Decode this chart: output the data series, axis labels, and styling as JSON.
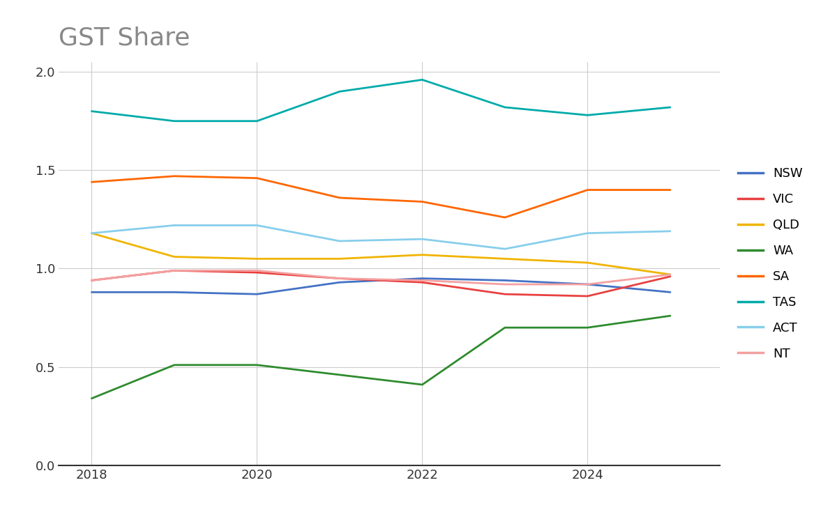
{
  "title": "GST Share",
  "title_fontsize": 26,
  "title_color": "#888888",
  "years": [
    2018,
    2019,
    2020,
    2021,
    2022,
    2023,
    2024,
    2025
  ],
  "series": {
    "NSW": {
      "color": "#4472C4",
      "values": [
        0.88,
        0.88,
        0.87,
        0.93,
        0.95,
        0.94,
        0.92,
        0.88
      ]
    },
    "VIC": {
      "color": "#E84040",
      "values": [
        0.94,
        0.99,
        0.98,
        0.95,
        0.93,
        0.87,
        0.86,
        0.96
      ]
    },
    "QLD": {
      "color": "#F0B400",
      "values": [
        1.18,
        1.06,
        1.05,
        1.05,
        1.07,
        1.05,
        1.03,
        0.97
      ]
    },
    "WA": {
      "color": "#2E8B2E",
      "values": [
        0.34,
        0.51,
        0.51,
        0.46,
        0.41,
        0.7,
        0.7,
        0.76
      ]
    },
    "SA": {
      "color": "#FF6600",
      "values": [
        1.44,
        1.47,
        1.46,
        1.36,
        1.34,
        1.26,
        1.4,
        1.4
      ]
    },
    "TAS": {
      "color": "#00AAAA",
      "values": [
        1.8,
        1.75,
        1.75,
        1.9,
        1.96,
        1.82,
        1.78,
        1.82
      ]
    },
    "ACT": {
      "color": "#87CEEB",
      "values": [
        1.18,
        1.22,
        1.22,
        1.14,
        1.15,
        1.1,
        1.18,
        1.19
      ]
    },
    "NT": {
      "color": "#F4A0A0",
      "values": [
        0.94,
        0.99,
        0.99,
        0.95,
        0.94,
        0.92,
        0.92,
        0.97
      ]
    }
  },
  "xlim": [
    2017.6,
    2025.6
  ],
  "ylim": [
    0.0,
    2.05
  ],
  "yticks": [
    0.0,
    0.5,
    1.0,
    1.5,
    2.0
  ],
  "xtick_years": [
    2018,
    2020,
    2022,
    2024
  ],
  "grid_color": "#cccccc",
  "bg_color": "#ffffff",
  "legend_order": [
    "NSW",
    "VIC",
    "QLD",
    "WA",
    "SA",
    "TAS",
    "ACT",
    "NT"
  ],
  "bottom_spine_color": "#333333",
  "tick_label_color": "#333333",
  "linewidth": 2.0
}
